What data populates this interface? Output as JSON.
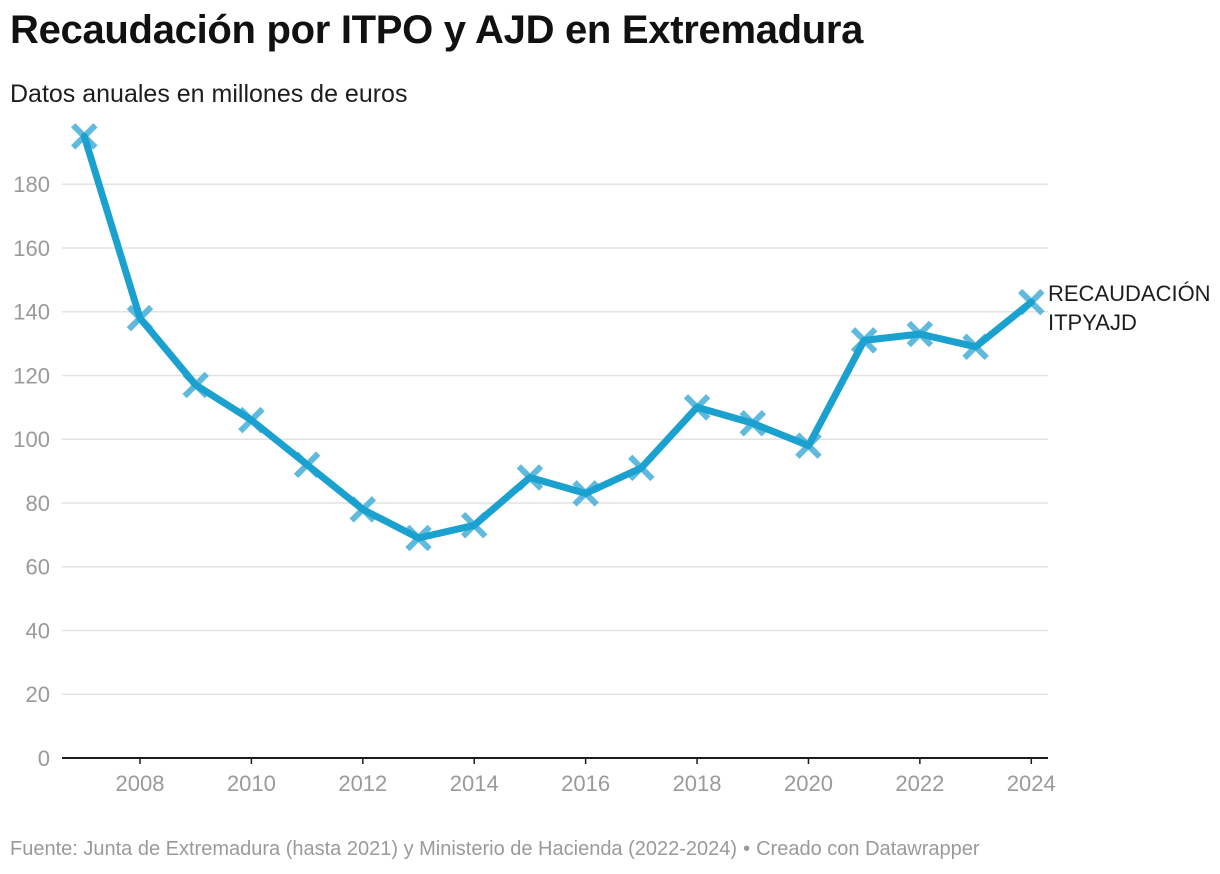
{
  "title": "Recaudación por ITPO y AJD en Extremadura",
  "subtitle": "Datos anuales en millones de euros",
  "footer": {
    "source": "Fuente: Junta de Extremadura (hasta 2021) y Ministerio de Hacienda (2022-2024)",
    "separator": "•",
    "credit": "Creado con Datawrapper"
  },
  "colors": {
    "line": "#1aa1cf",
    "marker": "#4eb3da",
    "grid": "#e2e2e2",
    "axis": "#1d1d1d",
    "tick_label": "#9a9a9a"
  },
  "chart_data": {
    "type": "line",
    "title": "Recaudación por ITPO y AJD en Extremadura",
    "subtitle": "Datos anuales en millones de euros",
    "xlabel": "",
    "ylabel": "",
    "x": [
      2007,
      2008,
      2009,
      2010,
      2011,
      2012,
      2013,
      2014,
      2015,
      2016,
      2017,
      2018,
      2019,
      2020,
      2021,
      2022,
      2023,
      2024
    ],
    "x_ticks": [
      2008,
      2010,
      2012,
      2014,
      2016,
      2018,
      2020,
      2022,
      2024
    ],
    "x_tick_labels": [
      "2008",
      "2010",
      "2012",
      "2014",
      "2016",
      "2018",
      "2020",
      "2022",
      "2024"
    ],
    "y_ticks": [
      0,
      20,
      40,
      60,
      80,
      100,
      120,
      140,
      160,
      180
    ],
    "y_tick_labels": [
      "0",
      "20",
      "40",
      "60",
      "80",
      "100",
      "120",
      "140",
      "160",
      "180"
    ],
    "xlim": [
      2006.6,
      2024.3
    ],
    "ylim": [
      0,
      197
    ],
    "grid": true,
    "series": [
      {
        "name": "RECAUDACIÓN ITPYAJD",
        "label_lines": [
          "RECAUDACIÓN",
          "ITPYAJD"
        ],
        "values": [
          195,
          138,
          117,
          106,
          92,
          78,
          69,
          73,
          88,
          83,
          91,
          110,
          105,
          98,
          131,
          133,
          129,
          143
        ],
        "marker": "cross"
      }
    ]
  }
}
